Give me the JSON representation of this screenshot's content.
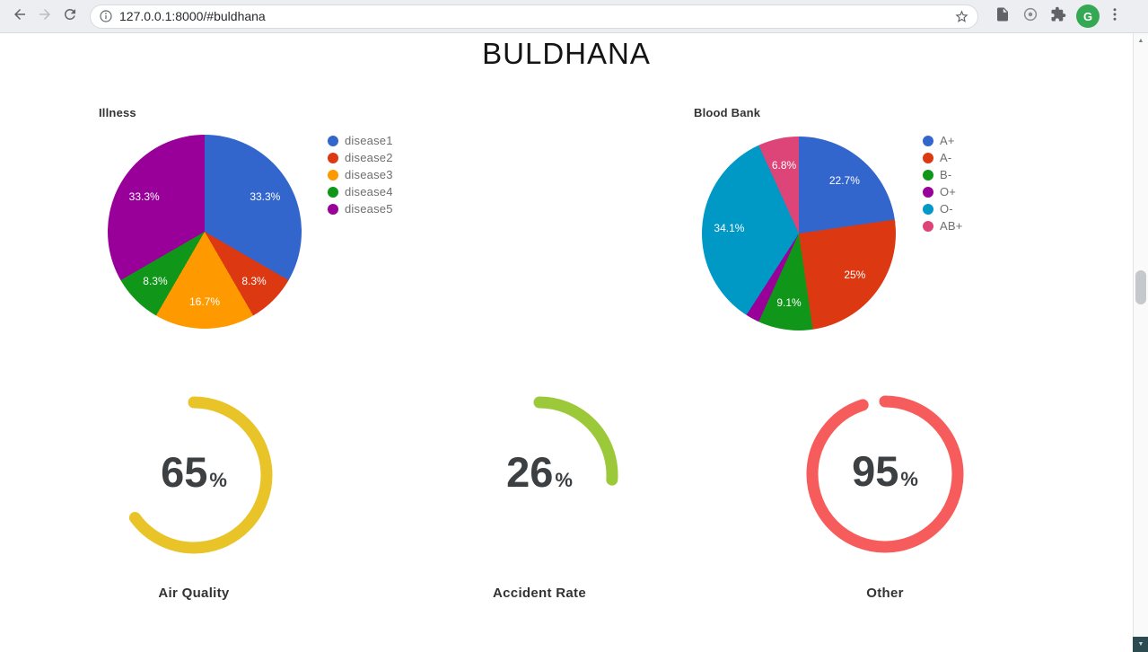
{
  "browser": {
    "url": "127.0.0.1:8000/#buldhana",
    "profile_initial": "G",
    "icons": {
      "back": "arrow-left",
      "forward": "arrow-right",
      "reload": "circular-arrow",
      "site_info": "info-circle",
      "bookmark": "star-outline",
      "doc_extension": "document",
      "circle_extension": "circle-dial",
      "extensions": "puzzle-piece",
      "profile": "avatar-circle",
      "menu": "vertical-dots",
      "scroll_up": "triangle-up",
      "scroll_down": "triangle-down"
    }
  },
  "page": {
    "title": "BULDHANA"
  },
  "chart_data": [
    {
      "type": "pie",
      "title": "Illness",
      "labels": [
        "disease1",
        "disease2",
        "disease3",
        "disease4",
        "disease5"
      ],
      "values": [
        33.3,
        8.3,
        16.7,
        8.3,
        33.3
      ],
      "display_labels": [
        "33.3%",
        "8.3%",
        "16.7%",
        "8.3%",
        "33.3%"
      ],
      "colors": [
        "#3366CC",
        "#DC3912",
        "#FF9900",
        "#109618",
        "#990099"
      ],
      "legend_position": "right"
    },
    {
      "type": "pie",
      "title": "Blood Bank",
      "labels": [
        "A+",
        "A-",
        "B-",
        "O+",
        "O-",
        "AB+"
      ],
      "values": [
        22.7,
        25,
        9.1,
        2.3,
        34.1,
        6.8
      ],
      "display_labels": [
        "22.7%",
        "25%",
        "9.1%",
        "",
        "34.1%",
        "6.8%"
      ],
      "colors": [
        "#3366CC",
        "#DC3912",
        "#109618",
        "#990099",
        "#0099C6",
        "#DD4477"
      ],
      "legend_position": "right"
    },
    {
      "type": "gauge",
      "label": "Air Quality",
      "value": 65,
      "unit": "%",
      "color": "#E8C428",
      "range": [
        0,
        100
      ]
    },
    {
      "type": "gauge",
      "label": "Accident Rate",
      "value": 26,
      "unit": "%",
      "color": "#9CC939",
      "range": [
        0,
        100
      ]
    },
    {
      "type": "gauge",
      "label": "Other",
      "value": 95,
      "unit": "%",
      "color": "#F75C5C",
      "range": [
        0,
        100
      ]
    }
  ]
}
